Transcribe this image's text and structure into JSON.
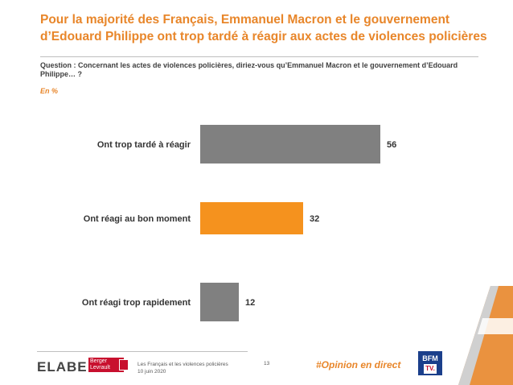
{
  "header": {
    "title": "Pour la majorité des Français, Emmanuel Macron et le gouvernement d’Edouard Philippe ont trop tardé à réagir aux actes de violences policières",
    "question": "Question : Concernant les actes de violences policières, diriez-vous qu’Emmanuel Macron et le gouvernement d’Edouard Philippe… ?",
    "unit": "En  %"
  },
  "chart_data": {
    "type": "bar",
    "orientation": "horizontal",
    "categories": [
      "Ont trop tardé à réagir",
      "Ont réagi au bon moment",
      "Ont réagi trop rapidement"
    ],
    "values": [
      56,
      32,
      12
    ],
    "colors": [
      "#808080",
      "#f5921e",
      "#808080"
    ],
    "xlim": [
      0,
      60
    ],
    "grid": false,
    "data_labels": true
  },
  "footer": {
    "logo_elabe": "ELABE",
    "logo_bl_line1": "Berger",
    "logo_bl_line2": "Levrault",
    "study": "Les Français et les violences policières",
    "date": "10 juin 2020",
    "page": "13",
    "hashtag": "#Opinion en direct",
    "bfm_top": "BFM",
    "bfm_bottom": "TV."
  },
  "colors": {
    "accent": "#e8862a",
    "bar_gray": "#808080",
    "bar_orange": "#f5921e"
  }
}
